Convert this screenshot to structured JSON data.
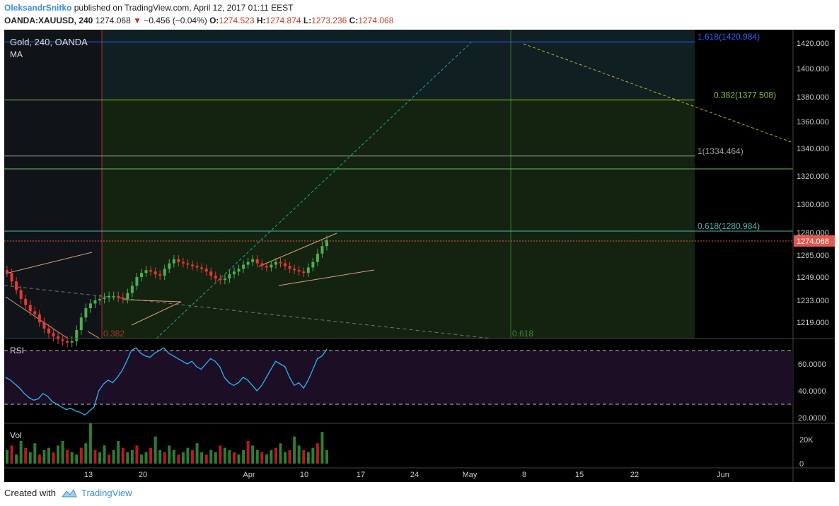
{
  "header": {
    "author": "OleksandrSnitko",
    "published_text": "published on TradingView.com, April 12, 2017 01:11 EEST",
    "symbol": "OANDA:XAUUSD, 240",
    "last": "1274.068",
    "change": "−0.456 (−0.04%)",
    "open_label": "O:",
    "open": "1274.523",
    "high_label": "H:",
    "high": "1274.874",
    "low_label": "L:",
    "low": "1273.236",
    "close_label": "C:",
    "close": "1274.068"
  },
  "panes": {
    "main_title": "Gold, 240, OANDA",
    "main_indicator": "MA",
    "rsi_label": "RSI",
    "vol_label": "Vol"
  },
  "footer": {
    "created_with": "Created with",
    "brand": "TradingView"
  },
  "colors": {
    "up": "#4caf50",
    "down": "#e53935",
    "rsi": "#29b6f6",
    "price_tag": "#e05a4e",
    "fib_blue": "#2962ff",
    "fib_green": "#8bc34a",
    "fib_gray": "#9e9e9e",
    "fib_teal": "#4db6ac"
  },
  "chart_data": [
    {
      "type": "candlestick",
      "title": "Gold, 240, OANDA",
      "price_axis_ticks": [
        1420,
        1400,
        1380,
        1360,
        1340,
        1320,
        1300,
        1280,
        1265,
        1249,
        1233,
        1219
      ],
      "price_axis_labels": [
        "1420.000",
        "1400.000",
        "1380.000",
        "1360.000",
        "1340.000",
        "1320.000",
        "1300.000",
        "1280.000",
        "1265.000",
        "1249.000",
        "1233.000",
        "1219.000"
      ],
      "current_price": "1274.068",
      "time_axis_labels": [
        "13",
        "20",
        "Apr",
        "10",
        "17",
        "24",
        "May",
        "8",
        "15",
        "22",
        "Jun"
      ],
      "fib_levels": [
        {
          "label": "1.618(1420.984)",
          "value": 1420.984
        },
        {
          "label": "0.382(1377.508)",
          "value": 1377.508
        },
        {
          "label": "1(1334.464)",
          "value": 1334.464
        },
        {
          "label": "0.618(1280.984)",
          "value": 1280.984
        }
      ],
      "chart_annotations": [
        "0.382",
        "0.618"
      ],
      "close_series": [
        1252,
        1246,
        1240,
        1234,
        1230,
        1226,
        1224,
        1219,
        1215,
        1212,
        1210,
        1208,
        1207,
        1206,
        1207,
        1214,
        1222,
        1228,
        1231,
        1233,
        1234,
        1235,
        1236,
        1236,
        1235,
        1234,
        1238,
        1243,
        1249,
        1252,
        1254,
        1253,
        1251,
        1250,
        1255,
        1259,
        1262,
        1260,
        1259,
        1258,
        1257,
        1256,
        1255,
        1253,
        1250,
        1248,
        1247,
        1248,
        1251,
        1253,
        1255,
        1258,
        1260,
        1262,
        1259,
        1257,
        1256,
        1258,
        1260,
        1259,
        1257,
        1255,
        1254,
        1253,
        1252,
        1256,
        1260,
        1266,
        1271,
        1275
      ]
    },
    {
      "type": "line",
      "name": "RSI",
      "y_ticks": [
        "60.0000",
        "40.0000",
        "20.0000"
      ],
      "bands": [
        30,
        70
      ],
      "values": [
        50,
        48,
        45,
        42,
        38,
        35,
        33,
        34,
        38,
        36,
        32,
        30,
        28,
        26,
        27,
        25,
        24,
        22,
        25,
        28,
        40,
        45,
        48,
        46,
        50,
        55,
        62,
        70,
        72,
        68,
        66,
        65,
        68,
        70,
        72,
        68,
        66,
        64,
        62,
        60,
        62,
        58,
        56,
        60,
        64,
        62,
        58,
        50,
        46,
        44,
        46,
        50,
        48,
        44,
        40,
        44,
        50,
        56,
        62,
        60,
        58,
        50,
        44,
        46,
        42,
        48,
        56,
        64,
        66,
        71
      ]
    },
    {
      "type": "bar",
      "name": "Vol",
      "y_ticks": [
        "20K",
        "0"
      ],
      "values": [
        6,
        8,
        4,
        10,
        7,
        5,
        9,
        4,
        6,
        7,
        5,
        8,
        10,
        6,
        5,
        4,
        7,
        9,
        18,
        6,
        5,
        8,
        4,
        6,
        10,
        7,
        5,
        6,
        8,
        4,
        5,
        7,
        12,
        6,
        5,
        8,
        6,
        4,
        5,
        7,
        6,
        9,
        5,
        4,
        6,
        5,
        8,
        7,
        6,
        5,
        4,
        6,
        10,
        8,
        6,
        5,
        4,
        6,
        7,
        9,
        5,
        6,
        12,
        8,
        6,
        5,
        7,
        9,
        14,
        6
      ]
    }
  ]
}
